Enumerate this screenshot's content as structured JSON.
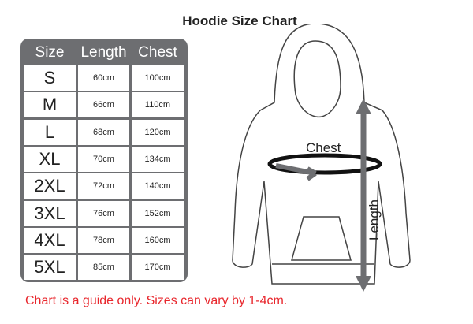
{
  "title": "Hoodie Size Chart",
  "table": {
    "headers": [
      "Size",
      "Length",
      "Chest"
    ],
    "rows": [
      [
        "S",
        "60cm",
        "100cm"
      ],
      [
        "M",
        "66cm",
        "110cm"
      ],
      [
        "L",
        "68cm",
        "120cm"
      ],
      [
        "XL",
        "70cm",
        "134cm"
      ],
      [
        "2XL",
        "72cm",
        "140cm"
      ],
      [
        "3XL",
        "76cm",
        "152cm"
      ],
      [
        "4XL",
        "78cm",
        "160cm"
      ],
      [
        "5XL",
        "85cm",
        "170cm"
      ]
    ]
  },
  "diagram": {
    "chest_label": "Chest",
    "length_label": "Length"
  },
  "note": "Chart is a guide only. Sizes can vary by 1-4cm.",
  "colors": {
    "table": "#6d6e71",
    "note": "#e8262c",
    "arrow": "#6d6e71"
  }
}
